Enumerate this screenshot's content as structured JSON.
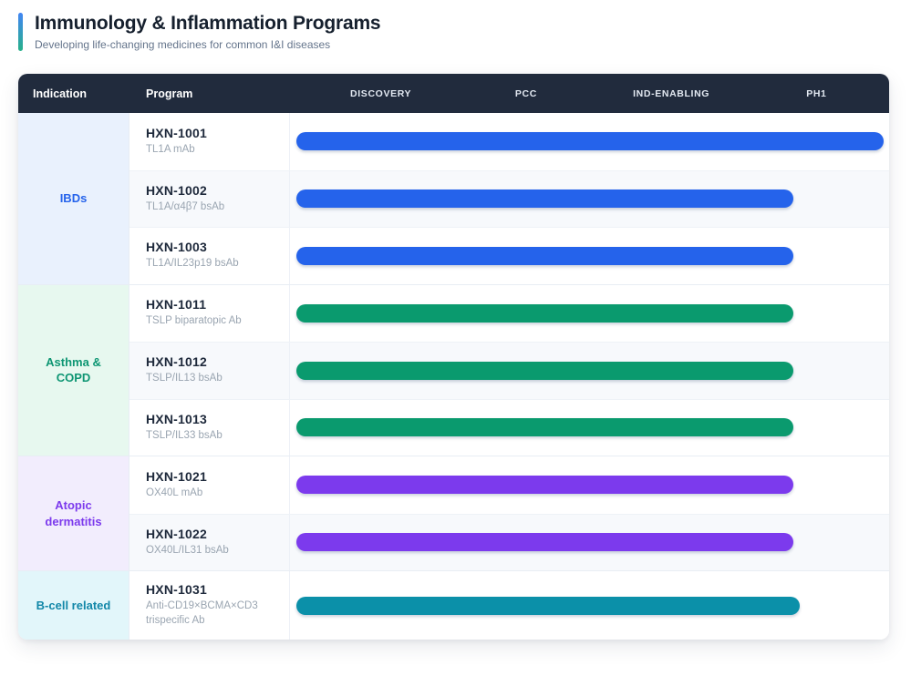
{
  "page": {
    "title": "Immunology & Inflammation Programs",
    "subtitle": "Developing life-changing medicines for common I&I diseases",
    "accent_gradient": [
      "#4285f4",
      "#27b189"
    ]
  },
  "table": {
    "header": {
      "bg": "#212b3d",
      "indication_label": "Indication",
      "program_label": "Program",
      "phases": [
        "DISCOVERY",
        "PCC",
        "IND-ENABLING",
        "PH1"
      ]
    },
    "groups": [
      {
        "indication": "IBDs",
        "text_color": "#2563eb",
        "cell_bg": "#e9f1fd",
        "bar_color": "#2563eb",
        "programs": [
          {
            "name": "HXN-1001",
            "modality": "TL1A mAb",
            "progress_pct": 98
          },
          {
            "name": "HXN-1002",
            "modality": "TL1A/α4β7 bsAb",
            "progress_pct": 83
          },
          {
            "name": "HXN-1003",
            "modality": "TL1A/IL23p19 bsAb",
            "progress_pct": 83
          }
        ]
      },
      {
        "indication": "Asthma & COPD",
        "text_color": "#0e9673",
        "cell_bg": "#e7f8ef",
        "bar_color": "#0a9a6e",
        "programs": [
          {
            "name": "HXN-1011",
            "modality": "TSLP biparatopic Ab",
            "progress_pct": 83
          },
          {
            "name": "HXN-1012",
            "modality": "TSLP/IL13 bsAb",
            "progress_pct": 83
          },
          {
            "name": "HXN-1013",
            "modality": "TSLP/IL33 bsAb",
            "progress_pct": 83
          }
        ]
      },
      {
        "indication": "Atopic dermatitis",
        "text_color": "#7c3aed",
        "cell_bg": "#f2edfd",
        "bar_color": "#7c3aed",
        "programs": [
          {
            "name": "HXN-1021",
            "modality": "OX40L mAb",
            "progress_pct": 83
          },
          {
            "name": "HXN-1022",
            "modality": "OX40L/IL31 bsAb",
            "progress_pct": 83
          }
        ]
      },
      {
        "indication": "B-cell related",
        "text_color": "#1187a8",
        "cell_bg": "#e2f6fa",
        "bar_color": "#0b90a9",
        "programs": [
          {
            "name": "HXN-1031",
            "modality": "Anti-CD19×BCMA×CD3 trispecific Ab",
            "progress_pct": 84
          }
        ]
      }
    ]
  },
  "chart_data": {
    "type": "bar",
    "orientation": "horizontal",
    "title": "Immunology & Inflammation Programs",
    "subtitle": "Developing life-changing medicines for common I&I diseases",
    "phases": [
      "DISCOVERY",
      "PCC",
      "IND-ENABLING",
      "PH1"
    ],
    "categories": [
      "HXN-1001",
      "HXN-1002",
      "HXN-1003",
      "HXN-1011",
      "HXN-1012",
      "HXN-1013",
      "HXN-1021",
      "HXN-1022",
      "HXN-1031"
    ],
    "values": [
      98,
      83,
      83,
      83,
      83,
      83,
      83,
      83,
      84
    ],
    "value_units": "percent of phase axis (4 equal phase columns, DISCOVERY→PH1)",
    "groups": [
      "IBDs",
      "IBDs",
      "IBDs",
      "Asthma & COPD",
      "Asthma & COPD",
      "Asthma & COPD",
      "Atopic dermatitis",
      "Atopic dermatitis",
      "B-cell related"
    ],
    "series_colors": [
      "#2563eb",
      "#2563eb",
      "#2563eb",
      "#0a9a6e",
      "#0a9a6e",
      "#0a9a6e",
      "#7c3aed",
      "#7c3aed",
      "#0b90a9"
    ],
    "xlim": [
      0,
      100
    ],
    "grid": false,
    "legend": false
  }
}
